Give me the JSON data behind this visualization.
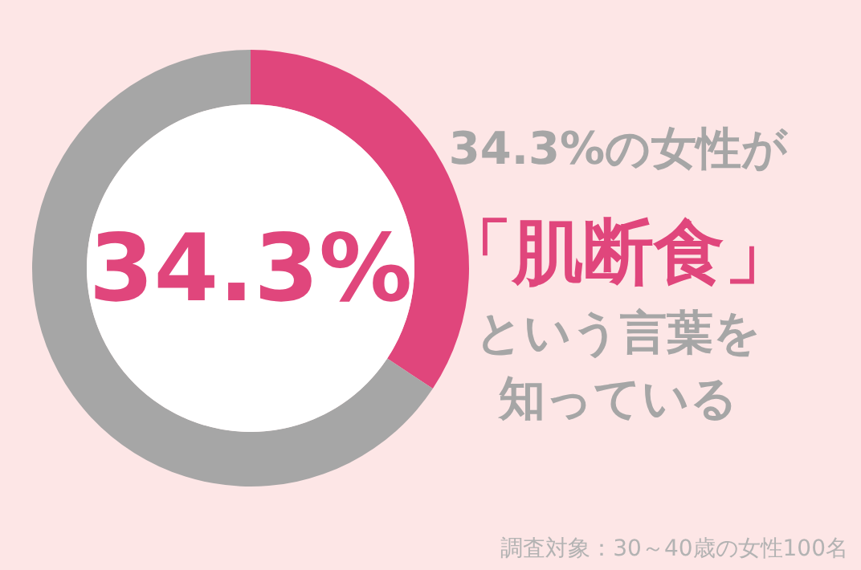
{
  "chart_data": {
    "type": "donut",
    "title": "34.3%の女性が「肌断食」という言葉を知っている",
    "categories": [
      null,
      null
    ],
    "values": [
      34.3,
      65.7
    ],
    "colors": [
      "#e0467c",
      "#a6a6a6"
    ],
    "value_labels": [
      "34.3%",
      null
    ],
    "annotations": [
      "調査対象：30～40歳の女性100名"
    ]
  }
}
